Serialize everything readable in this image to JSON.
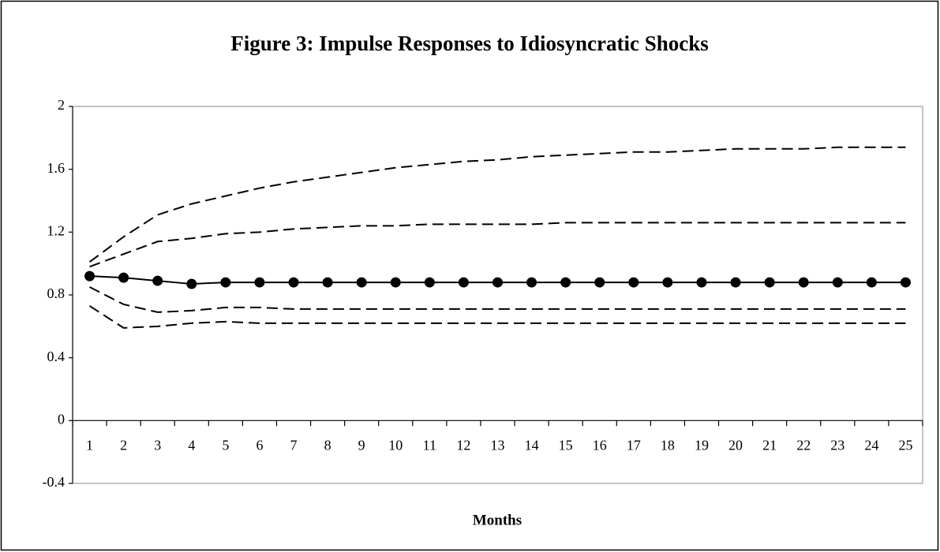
{
  "chart_data": {
    "type": "line",
    "title": "Figure 3: Impulse Responses to Idiosyncratic Shocks",
    "x_label": "Months",
    "categories": [
      "1",
      "2",
      "3",
      "4",
      "5",
      "6",
      "7",
      "8",
      "9",
      "10",
      "11",
      "12",
      "13",
      "14",
      "15",
      "16",
      "17",
      "18",
      "19",
      "20",
      "21",
      "22",
      "23",
      "24",
      "25"
    ],
    "series": [
      {
        "color": "#000000",
        "dashed": false,
        "markers": true,
        "values": [
          0.92,
          0.91,
          0.89,
          0.87,
          0.88,
          0.88,
          0.88,
          0.88,
          0.88,
          0.88,
          0.88,
          0.88,
          0.88,
          0.88,
          0.88,
          0.88,
          0.88,
          0.88,
          0.88,
          0.88,
          0.88,
          0.88,
          0.88,
          0.88,
          0.88
        ]
      },
      {
        "color": "#000000",
        "dashed": true,
        "markers": false,
        "values": [
          1.01,
          1.17,
          1.31,
          1.38,
          1.43,
          1.48,
          1.52,
          1.55,
          1.58,
          1.61,
          1.63,
          1.65,
          1.66,
          1.68,
          1.69,
          1.7,
          1.71,
          1.71,
          1.72,
          1.73,
          1.73,
          1.73,
          1.74,
          1.74,
          1.74
        ]
      },
      {
        "color": "#000000",
        "dashed": true,
        "markers": false,
        "values": [
          0.98,
          1.06,
          1.14,
          1.16,
          1.19,
          1.2,
          1.22,
          1.23,
          1.24,
          1.24,
          1.25,
          1.25,
          1.25,
          1.25,
          1.26,
          1.26,
          1.26,
          1.26,
          1.26,
          1.26,
          1.26,
          1.26,
          1.26,
          1.26,
          1.26
        ]
      },
      {
        "color": "#000000",
        "dashed": true,
        "markers": false,
        "values": [
          0.85,
          0.74,
          0.69,
          0.7,
          0.72,
          0.72,
          0.71,
          0.71,
          0.71,
          0.71,
          0.71,
          0.71,
          0.71,
          0.71,
          0.71,
          0.71,
          0.71,
          0.71,
          0.71,
          0.71,
          0.71,
          0.71,
          0.71,
          0.71,
          0.71
        ]
      },
      {
        "color": "#000000",
        "dashed": true,
        "markers": false,
        "values": [
          0.73,
          0.59,
          0.6,
          0.62,
          0.63,
          0.62,
          0.62,
          0.62,
          0.62,
          0.62,
          0.62,
          0.62,
          0.62,
          0.62,
          0.62,
          0.62,
          0.62,
          0.62,
          0.62,
          0.62,
          0.62,
          0.62,
          0.62,
          0.62,
          0.62
        ]
      }
    ],
    "ylim": [
      -0.4,
      2
    ],
    "yticks": [
      2,
      1.6,
      1.2,
      0.8,
      0.4,
      0,
      -0.4
    ],
    "grid": false
  }
}
